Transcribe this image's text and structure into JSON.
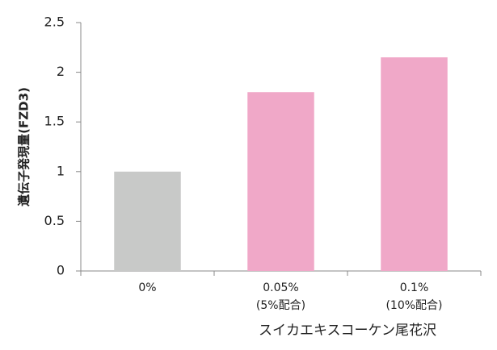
{
  "chart_data": {
    "type": "bar",
    "y_label": "遺伝子発現量(FZD3)",
    "x_label": "スイカエキスコーケン尾花沢",
    "categories": [
      "0%",
      "0.05%\n(5%配合)",
      "0.1%\n(10%配合)"
    ],
    "values": [
      1,
      1.8,
      2.15
    ],
    "colors": [
      "#c8c9c8",
      "#f0a8c8",
      "#f0a8c8"
    ],
    "ylim": [
      0,
      2.5
    ],
    "yticks": [
      0,
      0.5,
      1,
      1.5,
      2,
      2.5
    ],
    "grid": false
  }
}
